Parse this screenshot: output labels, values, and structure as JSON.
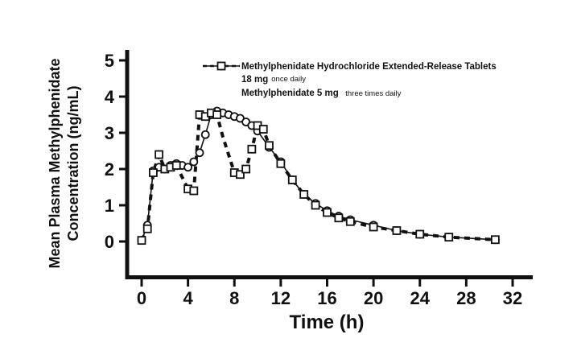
{
  "figure": {
    "y_axis_title_line1": "Mean Plasma Methylphenidate",
    "y_axis_title_line2": "Concentration (ng/mL)",
    "x_axis_title": "Time (h)"
  },
  "legend": {
    "series1_label": "Methylphenidate Hydrochloride Extended-Release Tablets",
    "series1_dose": "18 mg",
    "series1_freq": "once daily",
    "series2_label": "Methylphenidate 5 mg",
    "series2_freq": "three times daily"
  },
  "chart_data": {
    "type": "line",
    "title": "",
    "xlabel": "Time (h)",
    "ylabel": "Mean Plasma Methylphenidate Concentration (ng/mL)",
    "xlim": [
      0,
      32
    ],
    "ylim": [
      0,
      5
    ],
    "x_ticks": [
      0,
      4,
      8,
      12,
      16,
      20,
      24,
      28,
      32
    ],
    "y_ticks": [
      0,
      1,
      2,
      3,
      4,
      5
    ],
    "grid": false,
    "legend_position": "upper-center-inside",
    "line_color": "#111111",
    "series": [
      {
        "name": "Methylphenidate Hydrochloride Extended-Release Tablets 18 mg once daily",
        "marker": "circle",
        "line": "solid",
        "points": [
          [
            0,
            0.03
          ],
          [
            0.5,
            0.45
          ],
          [
            1,
            1.95
          ],
          [
            1.5,
            2.05
          ],
          [
            2,
            2.0
          ],
          [
            2.5,
            2.1
          ],
          [
            3,
            2.15
          ],
          [
            3.5,
            2.1
          ],
          [
            4,
            2.05
          ],
          [
            4.5,
            2.2
          ],
          [
            5,
            2.45
          ],
          [
            5.5,
            2.95
          ],
          [
            6,
            3.5
          ],
          [
            6.5,
            3.6
          ],
          [
            7,
            3.55
          ],
          [
            7.5,
            3.5
          ],
          [
            8,
            3.45
          ],
          [
            8.5,
            3.4
          ],
          [
            9,
            3.3
          ],
          [
            9.5,
            3.2
          ],
          [
            10,
            3.05
          ],
          [
            11,
            2.6
          ],
          [
            12,
            2.2
          ],
          [
            13,
            1.7
          ],
          [
            14,
            1.3
          ],
          [
            15,
            1.05
          ],
          [
            16,
            0.85
          ],
          [
            17,
            0.7
          ],
          [
            18,
            0.6
          ],
          [
            20,
            0.45
          ],
          [
            22,
            0.3
          ],
          [
            24,
            0.2
          ],
          [
            26.5,
            0.12
          ],
          [
            30.5,
            0.05
          ]
        ],
        "skip_markers": []
      },
      {
        "name": "Methylphenidate 5 mg three times daily",
        "marker": "square",
        "line": "dashed",
        "points": [
          [
            0,
            0.03
          ],
          [
            0.5,
            0.35
          ],
          [
            1,
            1.9
          ],
          [
            1.5,
            2.4
          ],
          [
            2,
            2.0
          ],
          [
            2.5,
            2.05
          ],
          [
            3,
            2.1
          ],
          [
            4,
            1.45
          ],
          [
            4.5,
            1.4
          ],
          [
            5,
            3.5
          ],
          [
            5.5,
            3.45
          ],
          [
            6,
            3.55
          ],
          [
            6.5,
            3.5
          ],
          [
            7,
            2.9
          ],
          [
            7.5,
            2.4
          ],
          [
            8,
            1.9
          ],
          [
            8.5,
            1.85
          ],
          [
            9,
            2.0
          ],
          [
            9.5,
            2.55
          ],
          [
            10,
            3.2
          ],
          [
            10.5,
            3.1
          ],
          [
            11,
            2.65
          ],
          [
            12,
            2.15
          ],
          [
            13,
            1.7
          ],
          [
            14,
            1.3
          ],
          [
            15,
            1.0
          ],
          [
            16,
            0.8
          ],
          [
            17,
            0.65
          ],
          [
            18,
            0.55
          ],
          [
            20,
            0.4
          ],
          [
            22,
            0.3
          ],
          [
            24,
            0.2
          ],
          [
            26.5,
            0.12
          ],
          [
            30.5,
            0.05
          ]
        ],
        "skip_markers": [
          7,
          7.5
        ]
      }
    ]
  }
}
